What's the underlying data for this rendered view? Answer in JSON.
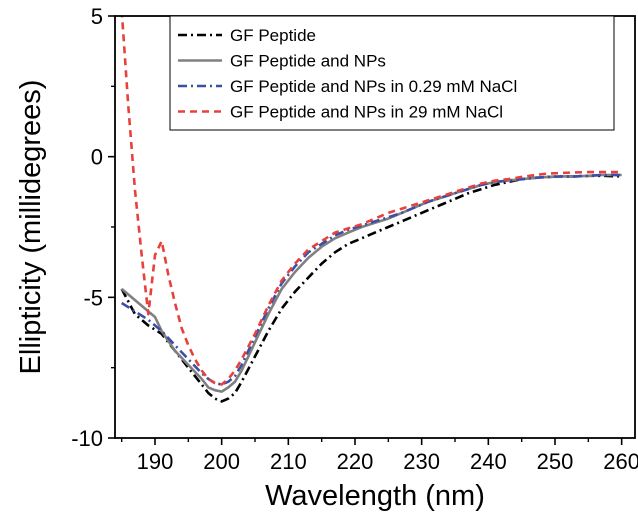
{
  "chart_data": {
    "type": "line",
    "title": "",
    "xlabel": "Wavelength (nm)",
    "ylabel": "Ellipticity (millidegrees)",
    "xlim": [
      184,
      262
    ],
    "ylim": [
      -10,
      5
    ],
    "xticks": [
      190,
      200,
      210,
      220,
      230,
      240,
      250,
      260
    ],
    "yticks": [
      -10,
      -5,
      0,
      5
    ],
    "grid": false,
    "legend_position": "top-right",
    "series": [
      {
        "name": "GF Peptide",
        "color": "#000000",
        "dash": "dash-dot",
        "x": [
          185,
          187,
          189,
          191,
          193,
          195,
          197,
          198,
          199,
          200,
          201,
          202,
          203,
          205,
          207,
          209,
          211,
          213,
          215,
          217,
          219,
          221,
          223,
          225,
          227,
          229,
          231,
          233,
          235,
          237,
          239,
          241,
          243,
          245,
          247,
          249,
          251,
          253,
          255,
          257,
          260
        ],
        "values": [
          -4.7,
          -5.6,
          -6.0,
          -6.3,
          -6.9,
          -7.5,
          -8.1,
          -8.4,
          -8.6,
          -8.7,
          -8.6,
          -8.4,
          -8.0,
          -7.1,
          -6.2,
          -5.4,
          -4.8,
          -4.3,
          -3.8,
          -3.4,
          -3.1,
          -2.9,
          -2.7,
          -2.5,
          -2.3,
          -2.1,
          -1.9,
          -1.7,
          -1.5,
          -1.3,
          -1.15,
          -1.0,
          -0.9,
          -0.8,
          -0.75,
          -0.72,
          -0.7,
          -0.7,
          -0.68,
          -0.68,
          -0.7
        ]
      },
      {
        "name": "GF Peptide and NPs",
        "color": "#808080",
        "dash": "solid",
        "x": [
          185,
          187,
          189,
          190,
          191,
          193,
          195,
          197,
          198,
          199,
          200,
          201,
          202,
          203,
          205,
          207,
          209,
          211,
          213,
          215,
          217,
          219,
          221,
          223,
          225,
          227,
          229,
          231,
          233,
          235,
          237,
          239,
          241,
          243,
          245,
          247,
          249,
          251,
          253,
          255,
          257,
          260
        ],
        "values": [
          -4.7,
          -5.1,
          -5.5,
          -5.7,
          -6.2,
          -6.9,
          -7.4,
          -7.9,
          -8.2,
          -8.3,
          -8.35,
          -8.2,
          -8.0,
          -7.6,
          -6.6,
          -5.6,
          -4.7,
          -4.1,
          -3.6,
          -3.2,
          -2.9,
          -2.7,
          -2.5,
          -2.35,
          -2.2,
          -2.0,
          -1.8,
          -1.6,
          -1.45,
          -1.3,
          -1.15,
          -1.0,
          -0.9,
          -0.85,
          -0.8,
          -0.75,
          -0.72,
          -0.7,
          -0.7,
          -0.68,
          -0.65,
          -0.65
        ]
      },
      {
        "name": "GF Peptide and NPs in 0.29 mM NaCl",
        "color": "#3a4fa8",
        "dash": "dash-dot",
        "x": [
          185,
          187,
          189,
          191,
          193,
          195,
          197,
          198,
          199,
          200,
          201,
          202,
          203,
          205,
          207,
          209,
          211,
          213,
          215,
          217,
          219,
          221,
          223,
          225,
          227,
          229,
          231,
          233,
          235,
          237,
          239,
          241,
          243,
          245,
          247,
          249,
          251,
          253,
          255,
          257,
          260
        ],
        "values": [
          -5.2,
          -5.5,
          -5.8,
          -6.2,
          -6.7,
          -7.2,
          -7.7,
          -7.9,
          -8.05,
          -8.1,
          -8.0,
          -7.8,
          -7.4,
          -6.4,
          -5.4,
          -4.5,
          -3.9,
          -3.4,
          -3.1,
          -2.8,
          -2.6,
          -2.45,
          -2.3,
          -2.15,
          -2.0,
          -1.8,
          -1.6,
          -1.45,
          -1.3,
          -1.15,
          -1.0,
          -0.9,
          -0.85,
          -0.8,
          -0.75,
          -0.72,
          -0.7,
          -0.7,
          -0.68,
          -0.65,
          -0.65
        ]
      },
      {
        "name": "GF Peptide and NPs in 29 mM NaCl",
        "color": "#e8413c",
        "dash": "dash",
        "x": [
          185,
          186,
          187,
          188,
          189,
          190,
          191,
          192,
          193,
          194,
          195,
          196,
          197,
          198,
          199,
          200,
          201,
          202,
          203,
          205,
          207,
          209,
          211,
          213,
          215,
          217,
          219,
          221,
          223,
          225,
          227,
          229,
          231,
          233,
          235,
          237,
          239,
          241,
          243,
          245,
          247,
          249,
          251,
          253,
          255,
          257,
          260
        ],
        "values": [
          5.2,
          1.8,
          -1.2,
          -3.5,
          -5.6,
          -3.5,
          -3.0,
          -4.2,
          -5.2,
          -6.1,
          -6.7,
          -7.2,
          -7.6,
          -7.9,
          -8.05,
          -8.1,
          -7.9,
          -7.6,
          -7.2,
          -6.3,
          -5.3,
          -4.4,
          -3.8,
          -3.3,
          -3.0,
          -2.7,
          -2.55,
          -2.4,
          -2.2,
          -2.0,
          -1.85,
          -1.7,
          -1.55,
          -1.4,
          -1.25,
          -1.1,
          -0.95,
          -0.85,
          -0.8,
          -0.72,
          -0.65,
          -0.6,
          -0.58,
          -0.56,
          -0.55,
          -0.55,
          -0.55
        ]
      }
    ]
  }
}
